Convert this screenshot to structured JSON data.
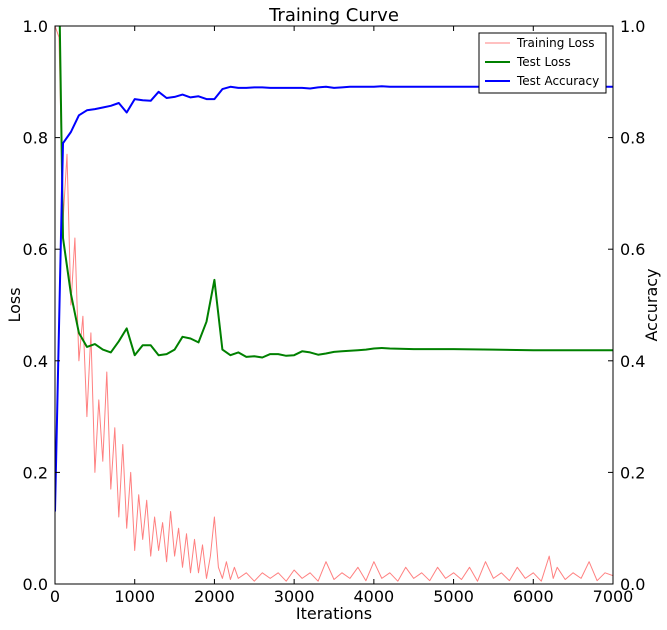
{
  "chart_data": {
    "type": "line",
    "title": "Training Curve",
    "xlabel": "Iterations",
    "ylabel": "Loss",
    "y2label": "Accuracy",
    "xlim": [
      0,
      7000
    ],
    "ylim": [
      0,
      1.0
    ],
    "y2lim": [
      0,
      1.0
    ],
    "xticks": [
      "0",
      "1000",
      "2000",
      "3000",
      "4000",
      "5000",
      "6000",
      "7000"
    ],
    "yticks": [
      "0.0",
      "0.2",
      "0.4",
      "0.6",
      "0.8",
      "1.0"
    ],
    "y2ticks": [
      "0.0",
      "0.2",
      "0.4",
      "0.6",
      "0.8",
      "1.0"
    ],
    "grid": false,
    "legend_position": "top-right",
    "series": [
      {
        "name": "Training Loss",
        "axis": "left",
        "color": "#ff8080",
        "x": [
          0,
          50,
          100,
          150,
          200,
          250,
          300,
          350,
          400,
          450,
          500,
          550,
          600,
          650,
          700,
          750,
          800,
          850,
          900,
          950,
          1000,
          1050,
          1100,
          1150,
          1200,
          1250,
          1300,
          1350,
          1400,
          1450,
          1500,
          1550,
          1600,
          1650,
          1700,
          1750,
          1800,
          1850,
          1900,
          1950,
          2000,
          2050,
          2100,
          2150,
          2200,
          2250,
          2300,
          2400,
          2500,
          2600,
          2700,
          2800,
          2900,
          3000,
          3100,
          3200,
          3300,
          3400,
          3500,
          3600,
          3700,
          3800,
          3900,
          4000,
          4100,
          4200,
          4300,
          4400,
          4500,
          4600,
          4700,
          4800,
          4900,
          5000,
          5100,
          5200,
          5300,
          5400,
          5500,
          5600,
          5700,
          5800,
          5900,
          6000,
          6100,
          6200,
          6250,
          6300,
          6400,
          6500,
          6600,
          6700,
          6800,
          6900,
          7000
        ],
        "y": [
          1.0,
          0.98,
          0.65,
          0.77,
          0.5,
          0.62,
          0.4,
          0.48,
          0.3,
          0.45,
          0.2,
          0.33,
          0.22,
          0.38,
          0.17,
          0.28,
          0.12,
          0.25,
          0.1,
          0.2,
          0.06,
          0.16,
          0.08,
          0.15,
          0.05,
          0.12,
          0.06,
          0.11,
          0.04,
          0.13,
          0.05,
          0.1,
          0.03,
          0.09,
          0.02,
          0.08,
          0.02,
          0.07,
          0.01,
          0.05,
          0.12,
          0.03,
          0.01,
          0.04,
          0.008,
          0.03,
          0.01,
          0.02,
          0.005,
          0.02,
          0.01,
          0.02,
          0.005,
          0.025,
          0.01,
          0.02,
          0.005,
          0.04,
          0.008,
          0.02,
          0.01,
          0.03,
          0.006,
          0.04,
          0.01,
          0.02,
          0.005,
          0.03,
          0.01,
          0.02,
          0.006,
          0.03,
          0.01,
          0.02,
          0.008,
          0.03,
          0.005,
          0.04,
          0.01,
          0.02,
          0.006,
          0.03,
          0.01,
          0.02,
          0.005,
          0.05,
          0.01,
          0.03,
          0.008,
          0.02,
          0.01,
          0.04,
          0.006,
          0.02,
          0.015
        ]
      },
      {
        "name": "Test Loss",
        "axis": "left",
        "color": "#008000",
        "x": [
          60,
          100,
          200,
          300,
          400,
          500,
          600,
          700,
          800,
          900,
          1000,
          1100,
          1200,
          1300,
          1400,
          1500,
          1600,
          1700,
          1800,
          1900,
          2000,
          2100,
          2200,
          2300,
          2400,
          2500,
          2600,
          2700,
          2800,
          2900,
          3000,
          3100,
          3200,
          3300,
          3400,
          3500,
          3600,
          3700,
          3800,
          3900,
          4000,
          4100,
          4200,
          4500,
          5000,
          5500,
          6000,
          6500,
          7000
        ],
        "y": [
          1.0,
          0.62,
          0.52,
          0.45,
          0.425,
          0.43,
          0.42,
          0.415,
          0.435,
          0.458,
          0.41,
          0.428,
          0.428,
          0.41,
          0.412,
          0.42,
          0.443,
          0.44,
          0.433,
          0.47,
          0.545,
          0.42,
          0.41,
          0.415,
          0.407,
          0.408,
          0.406,
          0.412,
          0.412,
          0.409,
          0.41,
          0.417,
          0.415,
          0.411,
          0.413,
          0.416,
          0.417,
          0.418,
          0.419,
          0.42,
          0.422,
          0.423,
          0.422,
          0.421,
          0.421,
          0.42,
          0.419,
          0.419,
          0.419
        ]
      },
      {
        "name": "Test Accuracy",
        "axis": "right",
        "color": "#0000ff",
        "x": [
          0,
          100,
          200,
          300,
          400,
          500,
          600,
          700,
          800,
          900,
          1000,
          1100,
          1200,
          1300,
          1400,
          1500,
          1600,
          1700,
          1800,
          1900,
          2000,
          2100,
          2200,
          2300,
          2400,
          2500,
          2600,
          2700,
          2800,
          2900,
          3000,
          3100,
          3200,
          3300,
          3400,
          3500,
          3600,
          3700,
          3800,
          3900,
          4000,
          4100,
          4200,
          4500,
          5000,
          5500,
          6000,
          6500,
          7000
        ],
        "y": [
          0.13,
          0.79,
          0.81,
          0.84,
          0.849,
          0.851,
          0.854,
          0.857,
          0.862,
          0.845,
          0.869,
          0.867,
          0.866,
          0.882,
          0.871,
          0.873,
          0.877,
          0.872,
          0.874,
          0.869,
          0.869,
          0.887,
          0.891,
          0.889,
          0.889,
          0.89,
          0.89,
          0.889,
          0.889,
          0.889,
          0.889,
          0.889,
          0.888,
          0.89,
          0.891,
          0.889,
          0.89,
          0.891,
          0.891,
          0.891,
          0.891,
          0.892,
          0.891,
          0.891,
          0.891,
          0.891,
          0.891,
          0.891,
          0.891
        ]
      }
    ]
  }
}
